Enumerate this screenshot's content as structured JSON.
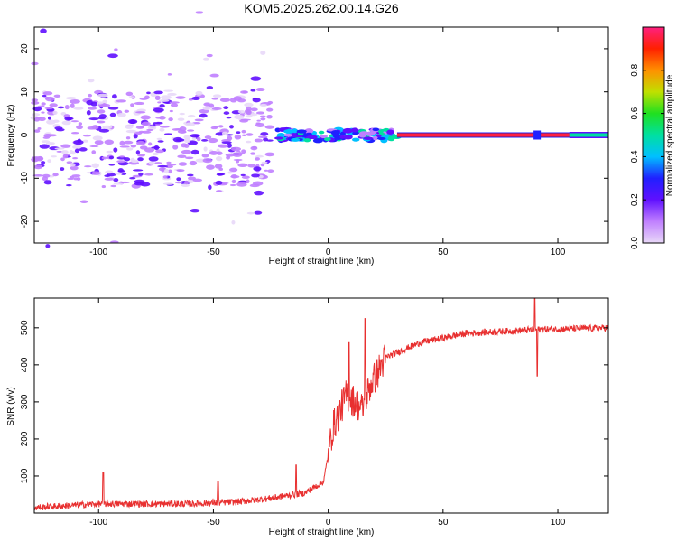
{
  "title": "KOM5.2025.262.00.14.G26",
  "chart_data": [
    {
      "type": "heatmap",
      "title": "KOM5.2025.262.00.14.G26",
      "xlabel": "Height of straight line (km)",
      "ylabel": "Frequency (Hz)",
      "xlim": [
        -128,
        122
      ],
      "ylim": [
        -25,
        25
      ],
      "xticks": [
        -100,
        -50,
        0,
        50,
        100
      ],
      "yticks": [
        -20,
        -10,
        0,
        10,
        20
      ],
      "colorbar": {
        "label": "Normalized spectral amplitude",
        "range": [
          0,
          1
        ],
        "ticks": [
          0,
          0.2,
          0.4,
          0.6,
          0.8
        ],
        "tick_labels": [
          "0.0",
          "0.2",
          "0.4",
          "0.6",
          "0.8"
        ],
        "colors": [
          "#e8d8f8",
          "#c080ff",
          "#6010ff",
          "#2020ff",
          "#00c0ff",
          "#00e0a0",
          "#20e020",
          "#c0e000",
          "#ff9000",
          "#ff2000",
          "#ff2080"
        ]
      },
      "bands": [
        {
          "x": [
            -128,
            -25
          ],
          "center": 0,
          "spread": [
            -15,
            10
          ],
          "level": "low"
        },
        {
          "x": [
            -22,
            30
          ],
          "center": 0,
          "spread": [
            -2,
            2
          ],
          "level": "mid"
        },
        {
          "x": [
            30,
            122
          ],
          "center": 0,
          "spread": [
            -1,
            1
          ],
          "level": "high"
        }
      ]
    },
    {
      "type": "line",
      "xlabel": "Height of straight line (km)",
      "ylabel": "SNR (v/v)",
      "xlim": [
        -128,
        122
      ],
      "ylim": [
        0,
        580
      ],
      "xticks": [
        -100,
        -50,
        0,
        50,
        100
      ],
      "yticks": [
        100,
        200,
        300,
        400,
        500
      ],
      "color": "#e83030",
      "profile": [
        {
          "x": -128,
          "y": 15
        },
        {
          "x": -100,
          "y": 25
        },
        {
          "x": -60,
          "y": 25
        },
        {
          "x": -40,
          "y": 30
        },
        {
          "x": -25,
          "y": 40
        },
        {
          "x": -10,
          "y": 55
        },
        {
          "x": -2,
          "y": 85
        },
        {
          "x": 2,
          "y": 230
        },
        {
          "x": 8,
          "y": 320
        },
        {
          "x": 15,
          "y": 280
        },
        {
          "x": 18,
          "y": 340
        },
        {
          "x": 25,
          "y": 420
        },
        {
          "x": 40,
          "y": 460
        },
        {
          "x": 60,
          "y": 485
        },
        {
          "x": 90,
          "y": 495
        },
        {
          "x": 122,
          "y": 500
        }
      ],
      "spikes": [
        {
          "x": -98,
          "y": 110
        },
        {
          "x": -48,
          "y": 85
        },
        {
          "x": -14,
          "y": 130
        },
        {
          "x": 9,
          "y": 460
        },
        {
          "x": 16,
          "y": 525
        },
        {
          "x": 90,
          "y": 580
        },
        {
          "x": 91,
          "y": 370
        }
      ]
    }
  ]
}
